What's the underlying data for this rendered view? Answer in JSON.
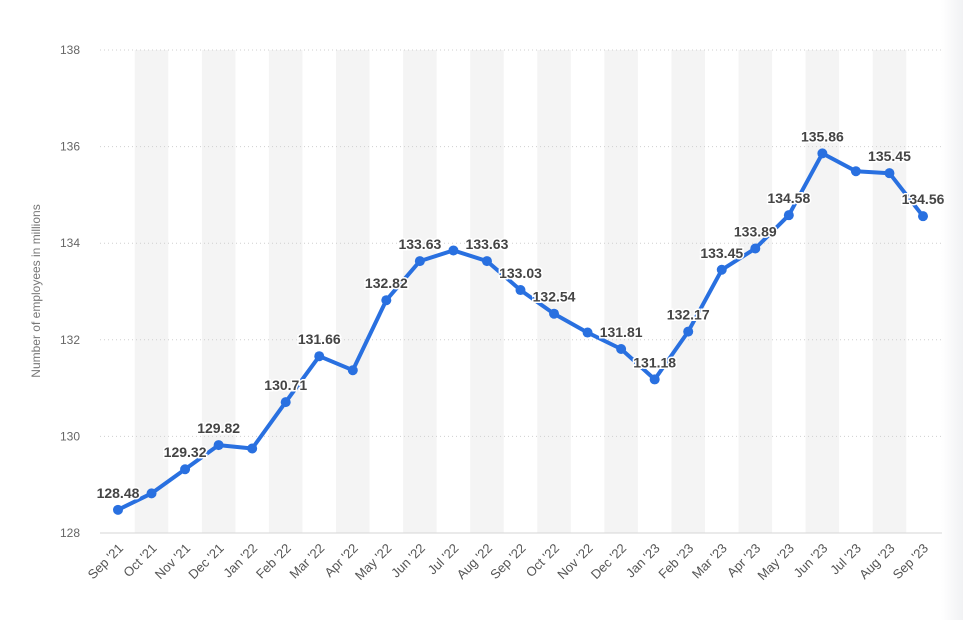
{
  "chart_data": {
    "type": "line",
    "title": "",
    "ylabel": "Number of employees in millions",
    "xlabel": "",
    "ylim": [
      128,
      138
    ],
    "yticks": [
      128,
      130,
      132,
      134,
      136,
      138
    ],
    "grid": true,
    "categories": [
      "Sep '21",
      "Oct '21",
      "Nov '21",
      "Dec '21",
      "Jan '22",
      "Feb '22",
      "Mar '22",
      "Apr '22",
      "May '22",
      "Jun '22",
      "Jul '22",
      "Aug '22",
      "Sep '22",
      "Oct '22",
      "Nov '22",
      "Dec '22",
      "Jan '23",
      "Feb '23",
      "Mar '23",
      "Apr '23",
      "May '23",
      "Jun '23",
      "Jul '23",
      "Aug '23",
      "Sep '23"
    ],
    "series": [
      {
        "values": [
          128.48,
          128.82,
          129.32,
          129.82,
          129.75,
          130.71,
          131.66,
          131.37,
          132.82,
          133.63,
          133.85,
          133.63,
          133.03,
          132.54,
          132.15,
          131.81,
          131.18,
          132.17,
          133.45,
          133.89,
          134.58,
          135.86,
          135.49,
          135.45,
          134.56
        ],
        "labels": [
          "128.48",
          "",
          "129.32",
          "129.82",
          "",
          "130.71",
          "131.66",
          "",
          "132.82",
          "133.63",
          "",
          "133.63",
          "133.03",
          "132.54",
          "",
          "131.81",
          "131.18",
          "132.17",
          "133.45",
          "133.89",
          "134.58",
          "135.86",
          "",
          "135.45",
          "134.56"
        ]
      }
    ],
    "line_color": "#2970e0"
  }
}
